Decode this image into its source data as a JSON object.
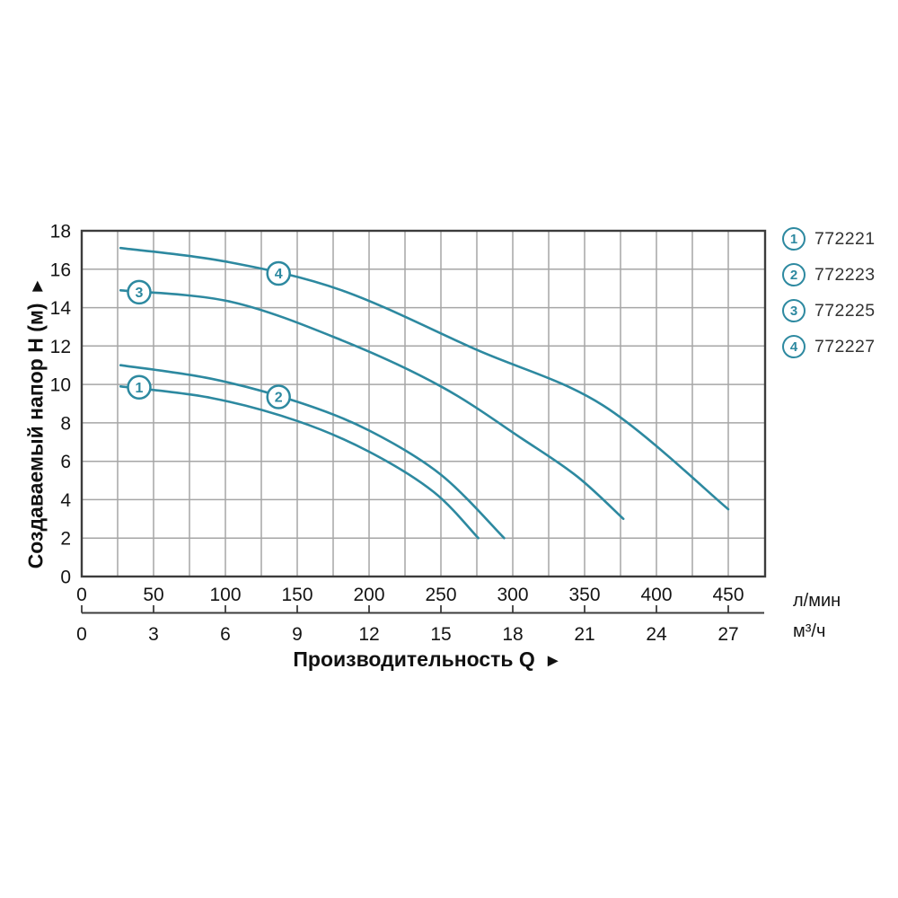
{
  "page": {
    "background": "#ffffff"
  },
  "chart_data": {
    "type": "line",
    "title": "",
    "xlabel": "Производительность Q",
    "xlabel_arrow": "►",
    "ylabel": "Создаваемый напор H (м)",
    "ylabel_arrow": "►",
    "grid": "on",
    "legend_position": "top-right",
    "x_axis_primary": {
      "unit": "л/мин",
      "ticks": [
        0,
        50,
        100,
        150,
        200,
        250,
        300,
        350,
        400,
        450
      ],
      "minor_grid_step": 25,
      "xlim": [
        0,
        475
      ]
    },
    "x_axis_secondary": {
      "unit": "м³/ч",
      "ticks": [
        0,
        3,
        6,
        9,
        12,
        15,
        18,
        21,
        24,
        27
      ]
    },
    "y_axis": {
      "ticks": [
        0,
        2,
        4,
        6,
        8,
        10,
        12,
        14,
        16,
        18
      ],
      "ylim": [
        0,
        18
      ]
    },
    "series": [
      {
        "id": "1",
        "name": "772221",
        "marker_at": {
          "q": 40,
          "h": 9.85
        },
        "points": [
          [
            27,
            9.9
          ],
          [
            90,
            9.3
          ],
          [
            150,
            8.1
          ],
          [
            200,
            6.5
          ],
          [
            245,
            4.4
          ],
          [
            276,
            2.0
          ]
        ]
      },
      {
        "id": "2",
        "name": "772223",
        "marker_at": {
          "q": 137,
          "h": 9.35
        },
        "points": [
          [
            27,
            11.0
          ],
          [
            90,
            10.3
          ],
          [
            150,
            9.1
          ],
          [
            200,
            7.6
          ],
          [
            250,
            5.3
          ],
          [
            294,
            2.0
          ]
        ]
      },
      {
        "id": "3",
        "name": "772225",
        "marker_at": {
          "q": 40,
          "h": 14.8
        },
        "points": [
          [
            27,
            14.9
          ],
          [
            104,
            14.3
          ],
          [
            181,
            12.3
          ],
          [
            250,
            9.9
          ],
          [
            306,
            7.2
          ],
          [
            345,
            5.2
          ],
          [
            377,
            3.0
          ]
        ]
      },
      {
        "id": "4",
        "name": "772227",
        "marker_at": {
          "q": 137,
          "h": 15.78
        },
        "points": [
          [
            27,
            17.1
          ],
          [
            100,
            16.4
          ],
          [
            181,
            14.9
          ],
          [
            275,
            11.8
          ],
          [
            363,
            8.9
          ],
          [
            450,
            3.5
          ]
        ]
      }
    ],
    "colors": {
      "curve": "#2d89a0",
      "grid": "#a6a6a6",
      "axis": "#3c3c3c",
      "text": "#141414"
    },
    "legend": {
      "items": [
        {
          "num": "1",
          "label": "772221"
        },
        {
          "num": "2",
          "label": "772223"
        },
        {
          "num": "3",
          "label": "772225"
        },
        {
          "num": "4",
          "label": "772227"
        }
      ]
    }
  }
}
